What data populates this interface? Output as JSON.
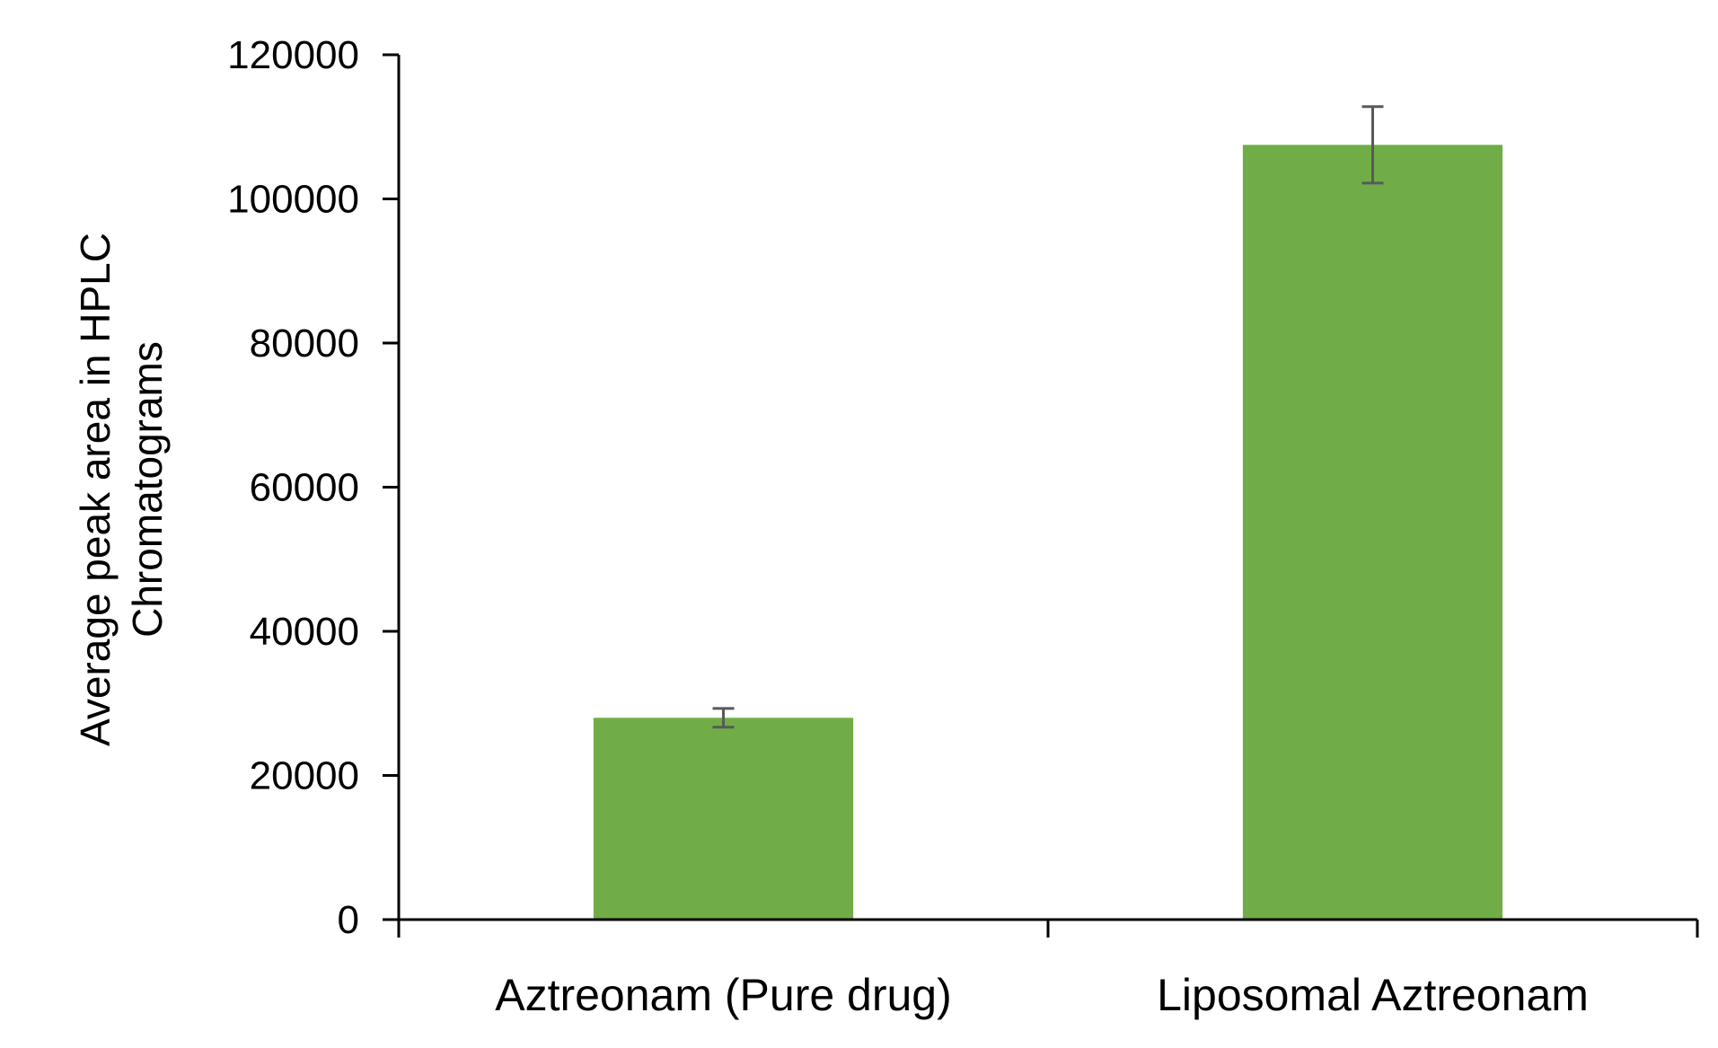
{
  "chart_data": {
    "type": "bar",
    "title": "",
    "xlabel": "",
    "ylabel_lines": [
      "Average peak area in HPLC",
      "Chromatograms"
    ],
    "categories": [
      "Aztreonam (Pure drug)",
      "Liposomal Aztreonam"
    ],
    "values": [
      28000,
      107500
    ],
    "error": [
      1300,
      5300
    ],
    "ylim": [
      0,
      120000
    ],
    "yticks": [
      0,
      20000,
      40000,
      60000,
      80000,
      100000,
      120000
    ],
    "ytick_labels": [
      "0",
      "20000",
      "40000",
      "60000",
      "80000",
      "100000",
      "120000"
    ],
    "grid": false,
    "legend": "none",
    "colors": {
      "bar": "#70ad47",
      "error_bar": "#595959",
      "axis": "#000000"
    }
  }
}
